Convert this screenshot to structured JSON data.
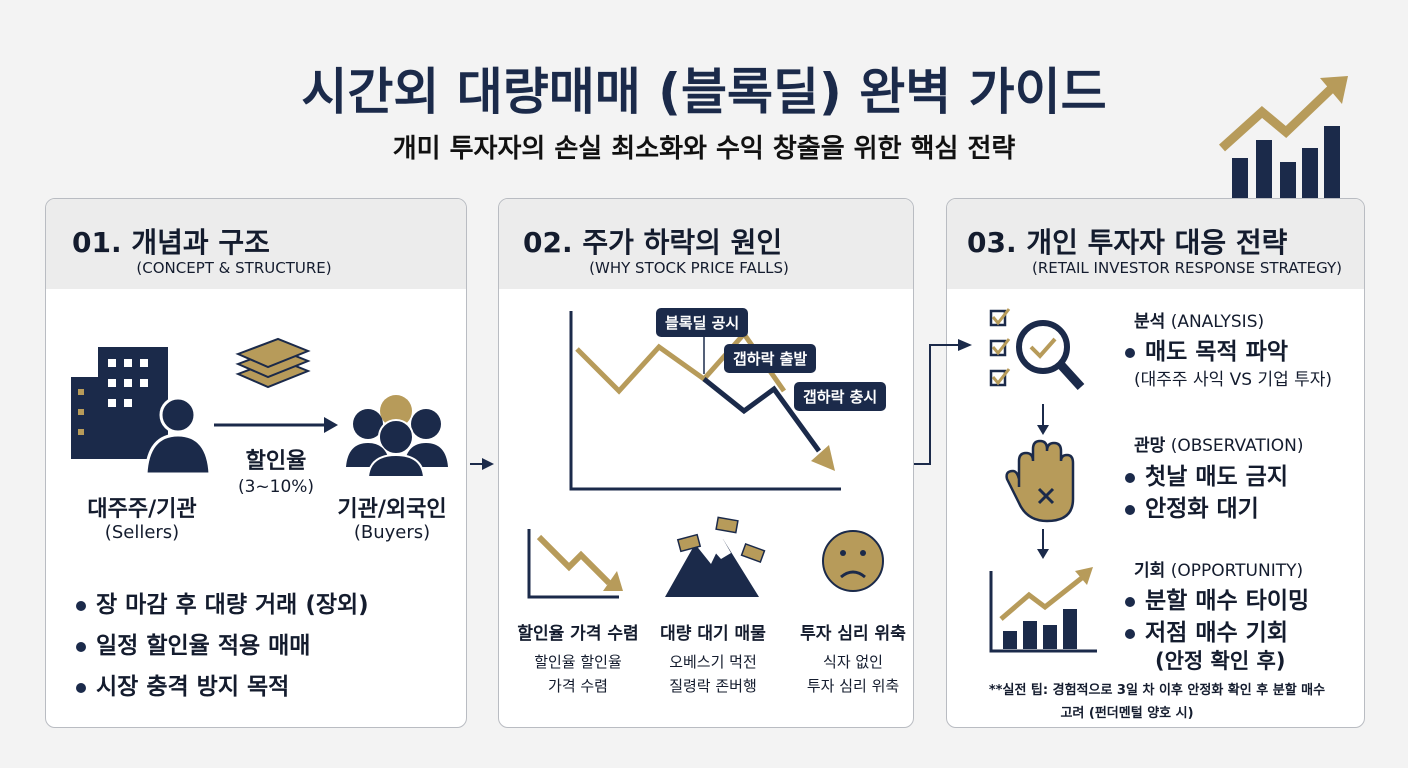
{
  "header": {
    "title": "시간외 대량매매 (블록딜) 완벽 가이드",
    "subtitle": "개미 투자자의 손실 최소화와 수익 창출을 위한 핵심 전략"
  },
  "panels": [
    {
      "title": "01. 개념과 구조",
      "subtitle": "(CONCEPT & STRUCTURE)",
      "seller": {
        "label": "대주주/기관",
        "sub": "(Sellers)"
      },
      "flow": {
        "label": "할인율",
        "sub": "(3~10%)"
      },
      "buyer": {
        "label": "기관/외국인",
        "sub": "(Buyers)"
      },
      "bullets": [
        "장 마감 후 대량 거래 (장외)",
        "일정 할인율 적용 매매",
        "시장 충격 방지 목적"
      ]
    },
    {
      "title": "02. 주가 하락의 원인",
      "subtitle": "(WHY STOCK PRICE FALLS)",
      "callouts": [
        "블록딜 공시",
        "갭하락 출발",
        "갭하락 충시"
      ],
      "causes": [
        {
          "title": "할인율 가격 수렴",
          "lines": [
            "할인율 할인율",
            "가격 수렴"
          ]
        },
        {
          "title": "대량 대기 매물",
          "lines": [
            "오베스기 먹전",
            "질령락 존버행"
          ]
        },
        {
          "title": "투자 심리 위축",
          "lines": [
            "식자 없인",
            "투자 심리 위축"
          ]
        }
      ]
    },
    {
      "title": "03. 개인 투자자 대응 전략",
      "subtitle": "(RETAIL INVESTOR RESPONSE STRATEGY)",
      "steps": [
        {
          "label": "분석",
          "sub": "(ANALYSIS)",
          "items": [
            "매도 목적 파악"
          ],
          "note": "(대주주 사익 VS 기업 투자)"
        },
        {
          "label": "관망",
          "sub": "(OBSERVATION)",
          "items": [
            "첫날 매도 금지",
            "안정화 대기"
          ]
        },
        {
          "label": "기회",
          "sub": "(OPPORTUNITY)",
          "items": [
            "분할 매수 타이밍",
            "저점 매수 기회"
          ],
          "note": "(안정 확인 후)"
        }
      ],
      "tip": [
        "**실전 팁: 경험적으로 3일 차 이후 안정화 확인 후 분할 매수",
        "고려 (펀더멘털 양호 시)"
      ]
    }
  ]
}
